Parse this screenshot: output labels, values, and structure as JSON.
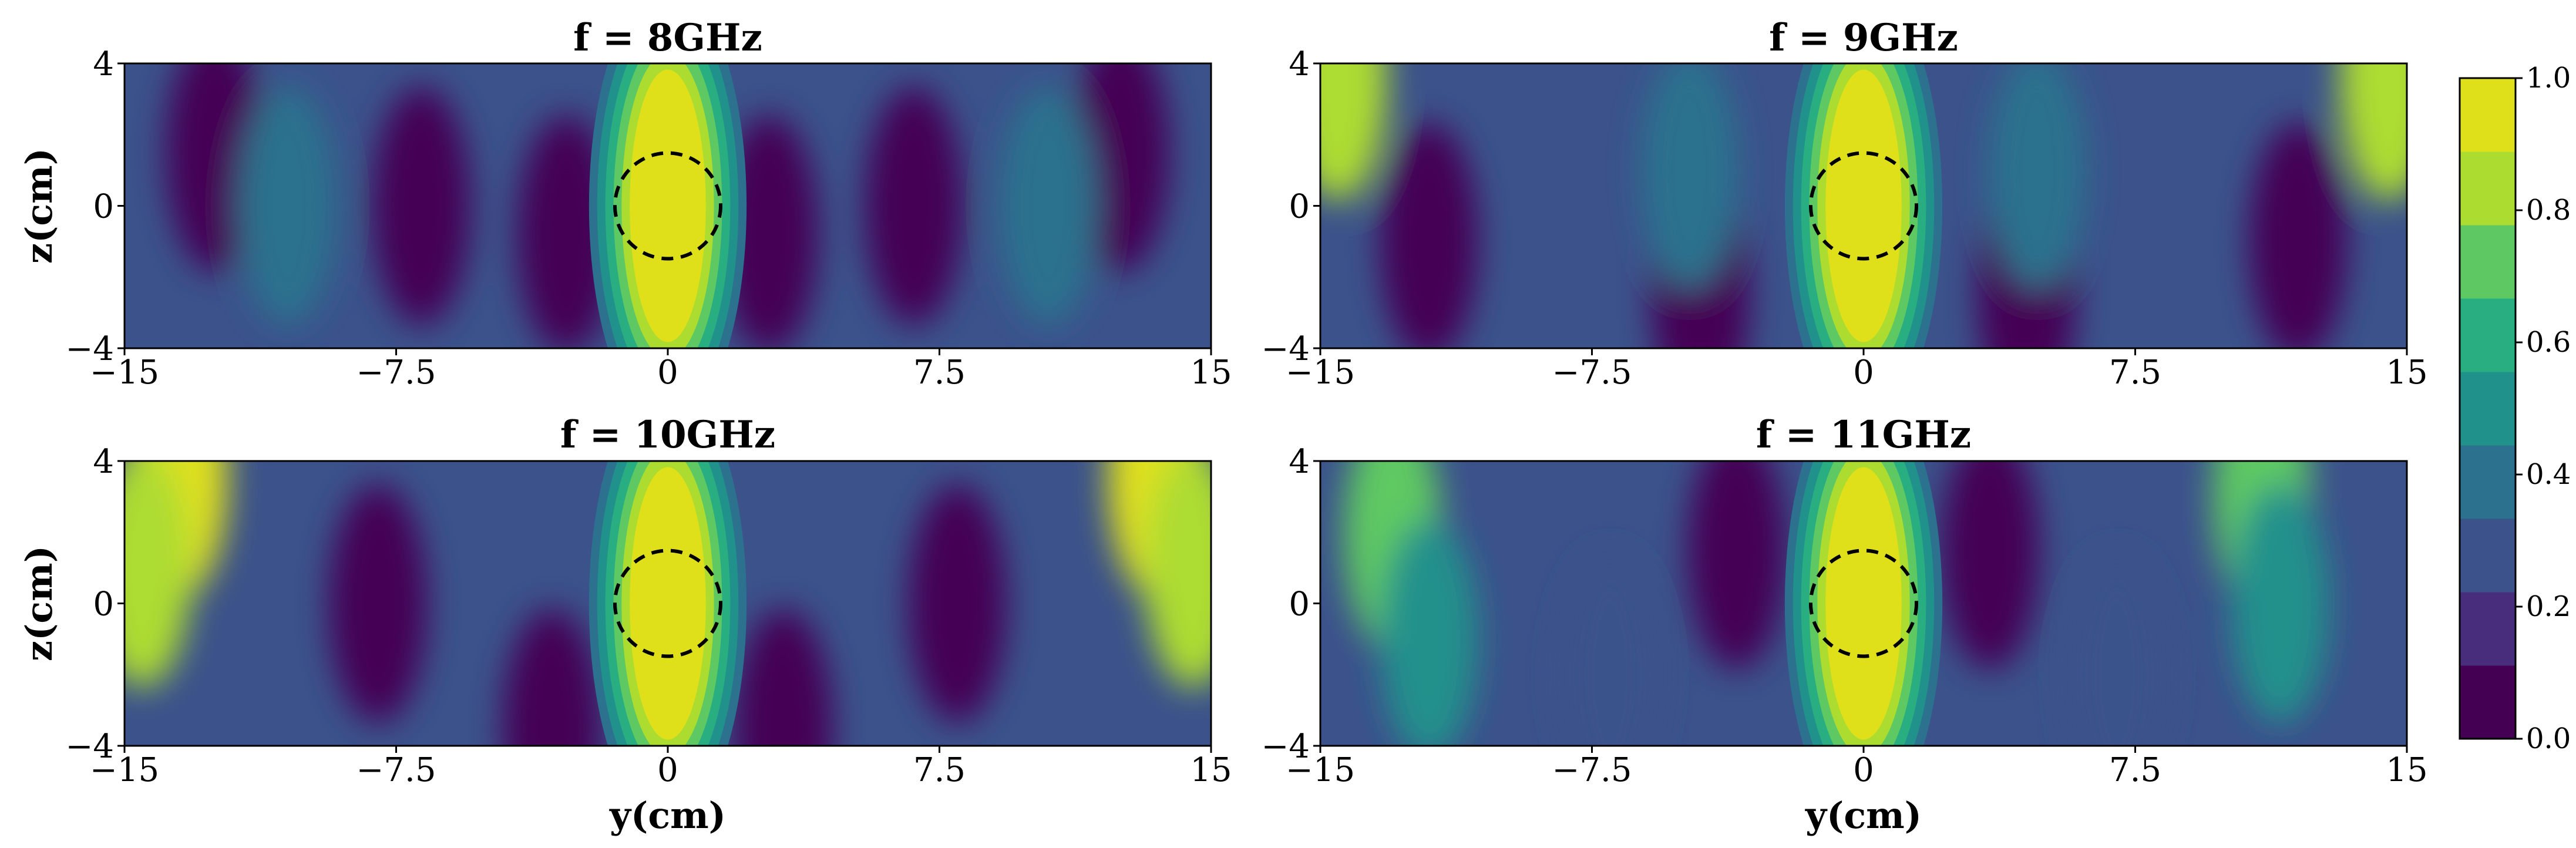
{
  "chart_data": [
    {
      "type": "heatmap",
      "title": "f = 8GHz",
      "xlabel": "",
      "ylabel": "z(cm)",
      "xlim": [
        -15,
        15
      ],
      "ylim": [
        -4,
        4
      ],
      "xticks": [
        "−15",
        "−7.5",
        "0",
        "7.5",
        "15"
      ],
      "yticks": [
        "4",
        "0",
        "−4"
      ],
      "beam_width": 1.5,
      "lobes": [
        {
          "y": -12.5,
          "z": 1.5,
          "value": 0.02
        },
        {
          "y": 12.5,
          "z": 1.5,
          "value": 0.02
        },
        {
          "y": -6.8,
          "z": 0,
          "value": 0.02
        },
        {
          "y": 6.8,
          "z": 0,
          "value": 0.02
        },
        {
          "y": -2.8,
          "z": -0.8,
          "value": 0.05
        },
        {
          "y": 2.8,
          "z": -0.8,
          "value": 0.05
        },
        {
          "y": -10.5,
          "z": 0,
          "value": 0.35
        },
        {
          "y": 10.5,
          "z": 0,
          "value": 0.35
        }
      ]
    },
    {
      "type": "heatmap",
      "title": "f = 9GHz",
      "xlabel": "",
      "ylabel": "",
      "xlim": [
        -15,
        15
      ],
      "ylim": [
        -4,
        4
      ],
      "xticks": [
        "−15",
        "−7.5",
        "0",
        "7.5",
        "15"
      ],
      "yticks": [
        "4",
        "0",
        "−4"
      ],
      "beam_width": 1.5,
      "lobes": [
        {
          "y": -14.5,
          "z": 3.5,
          "value": 0.85
        },
        {
          "y": 14.5,
          "z": 3.5,
          "value": 0.85
        },
        {
          "y": -12,
          "z": -1,
          "value": 0.02
        },
        {
          "y": 12,
          "z": -1,
          "value": 0.02
        },
        {
          "y": -4.5,
          "z": -2.5,
          "value": 0.05
        },
        {
          "y": 4.5,
          "z": -2.5,
          "value": 0.05
        },
        {
          "y": -4.8,
          "z": 1,
          "value": 0.42
        },
        {
          "y": 4.8,
          "z": 1,
          "value": 0.42
        }
      ]
    },
    {
      "type": "heatmap",
      "title": "f = 10GHz",
      "xlabel": "y(cm)",
      "ylabel": "z(cm)",
      "xlim": [
        -15,
        15
      ],
      "ylim": [
        -4,
        4
      ],
      "xticks": [
        "−15",
        "−7.5",
        "0",
        "7.5",
        "15"
      ],
      "yticks": [
        "4",
        "0",
        "−4"
      ],
      "beam_width": 1.5,
      "lobes": [
        {
          "y": -13.5,
          "z": 3.5,
          "value": 0.95
        },
        {
          "y": 13.5,
          "z": 3.5,
          "value": 0.95
        },
        {
          "y": -14.5,
          "z": 1,
          "value": 0.8
        },
        {
          "y": 14.5,
          "z": 1,
          "value": 0.8
        },
        {
          "y": -8,
          "z": 0,
          "value": 0.02
        },
        {
          "y": 8,
          "z": 0,
          "value": 0.02
        },
        {
          "y": -3.2,
          "z": -3.5,
          "value": 0.05
        },
        {
          "y": 3.2,
          "z": -3.5,
          "value": 0.05
        }
      ]
    },
    {
      "type": "heatmap",
      "title": "f = 11GHz",
      "xlabel": "y(cm)",
      "ylabel": "",
      "xlim": [
        -15,
        15
      ],
      "ylim": [
        -4,
        4
      ],
      "xticks": [
        "−15",
        "−7.5",
        "0",
        "7.5",
        "15"
      ],
      "yticks": [
        "4",
        "0",
        "−4"
      ],
      "beam_width": 1.5,
      "lobes": [
        {
          "y": -13,
          "z": 2,
          "value": 0.72
        },
        {
          "y": 11,
          "z": 3,
          "value": 0.72
        },
        {
          "y": -12,
          "z": -1,
          "value": 0.55
        },
        {
          "y": 11.5,
          "z": 0,
          "value": 0.5
        },
        {
          "y": -3.5,
          "z": 1.5,
          "value": 0.05
        },
        {
          "y": 3.5,
          "z": 1.5,
          "value": 0.05
        },
        {
          "y": -7,
          "z": -2,
          "value": 0.3
        },
        {
          "y": 7,
          "z": -2,
          "value": 0.3
        }
      ]
    }
  ],
  "colorbar": {
    "ticks": [
      "0.0",
      "0.2",
      "0.4",
      "0.6",
      "0.8",
      "1.0"
    ],
    "levels": [
      "#440154",
      "#472d7b",
      "#3b528b",
      "#2c728e",
      "#21918c",
      "#28ae80",
      "#5ec962",
      "#addc30",
      "#e0e01a"
    ]
  }
}
